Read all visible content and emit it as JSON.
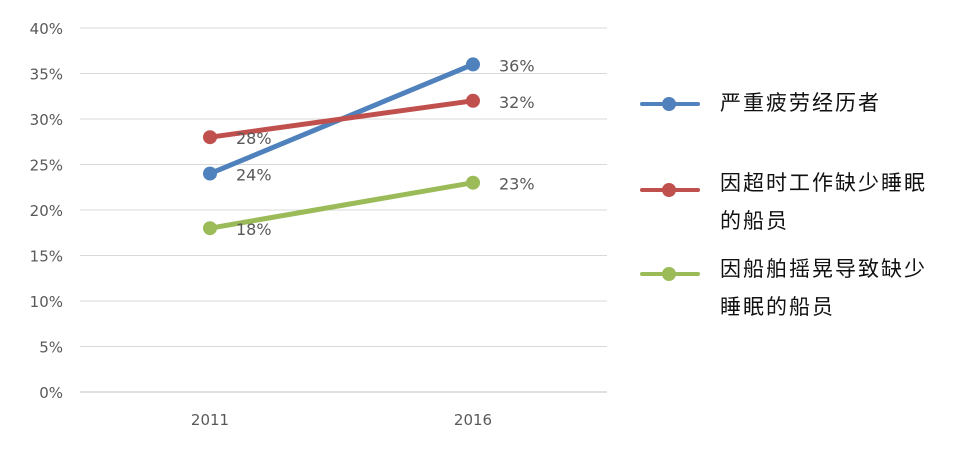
{
  "chart_data": {
    "type": "line",
    "categories": [
      "2011",
      "2016"
    ],
    "ylim": [
      0,
      40
    ],
    "yticks": [
      "0%",
      "5%",
      "10%",
      "15%",
      "20%",
      "25%",
      "30%",
      "35%",
      "40%"
    ],
    "grid": true,
    "legend_position": "right",
    "series": [
      {
        "name": "严重疲劳经历者",
        "values": [
          24,
          36
        ],
        "labels": [
          "24%",
          "36%"
        ],
        "color": "#4f81bd"
      },
      {
        "name": "因超时工作缺少睡眠的船员",
        "values": [
          28,
          32
        ],
        "labels": [
          "28%",
          "32%"
        ],
        "color": "#c0504d"
      },
      {
        "name": "因船舶摇晃导致缺少睡眠的船员",
        "values": [
          18,
          23
        ],
        "labels": [
          "18%",
          "23%"
        ],
        "color": "#9bbb59"
      }
    ]
  }
}
